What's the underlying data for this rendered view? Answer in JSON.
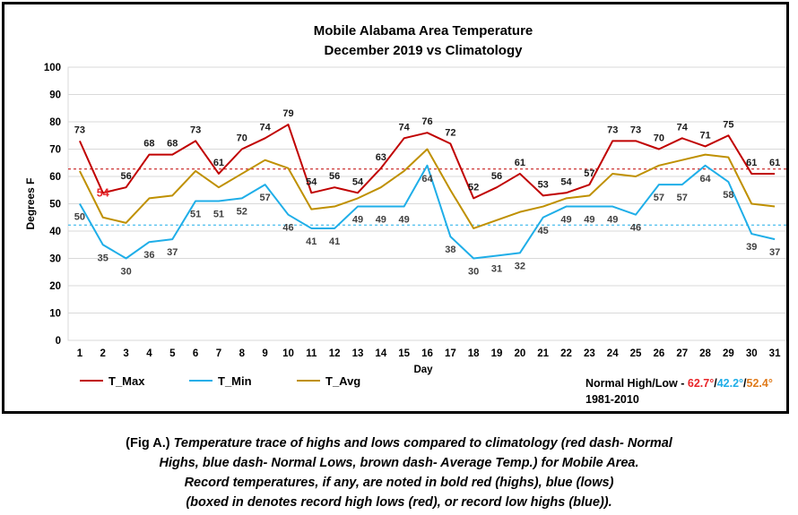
{
  "chart_data": {
    "type": "line",
    "title": "Mobile Alabama Area Temperature",
    "subtitle": "December 2019 vs Climatology",
    "xlabel": "Day",
    "ylabel": "Degrees F",
    "ylim": [
      0,
      100
    ],
    "yticks": [
      0,
      10,
      20,
      30,
      40,
      50,
      60,
      70,
      80,
      90,
      100
    ],
    "grid": true,
    "legend_position": "bottom-left",
    "x": [
      1,
      2,
      3,
      4,
      5,
      6,
      7,
      8,
      9,
      10,
      11,
      12,
      13,
      14,
      15,
      16,
      17,
      18,
      19,
      20,
      21,
      22,
      23,
      24,
      25,
      26,
      27,
      28,
      29,
      30,
      31
    ],
    "series": [
      {
        "name": "T_Max",
        "color": "#C00000",
        "values": [
          73,
          54,
          56,
          68,
          68,
          73,
          61,
          70,
          74,
          79,
          54,
          56,
          54,
          63,
          74,
          76,
          72,
          52,
          56,
          61,
          53,
          54,
          57,
          73,
          73,
          70,
          74,
          71,
          75,
          61,
          61
        ],
        "labels": [
          "73",
          "54",
          "56",
          "68",
          "68",
          "73",
          "61",
          "70",
          "74",
          "79",
          "54",
          "56",
          "54",
          "63",
          "74",
          "76",
          "72",
          "52",
          "56",
          "61",
          "53",
          "54",
          "57",
          "73",
          "73",
          "70",
          "74",
          "71",
          "75",
          "61",
          "61"
        ]
      },
      {
        "name": "T_Min",
        "color": "#1FAEE8",
        "values": [
          50,
          35,
          30,
          36,
          37,
          51,
          51,
          52,
          57,
          46,
          41,
          41,
          49,
          49,
          49,
          64,
          38,
          30,
          31,
          32,
          45,
          49,
          49,
          49,
          46,
          57,
          57,
          64,
          58,
          39,
          37
        ],
        "labels": [
          "50",
          "35",
          "30",
          "36",
          "37",
          "51",
          "51",
          "52",
          "57",
          "46",
          "41",
          "41",
          "49",
          "49",
          "49",
          "64",
          "38",
          "30",
          "31",
          "32",
          "45",
          "49",
          "49",
          "49",
          "46",
          "57",
          "57",
          "64",
          "58",
          "39",
          "37"
        ]
      },
      {
        "name": "T_Avg",
        "color": "#BF9000",
        "values": [
          62,
          45,
          43,
          52,
          53,
          62,
          56,
          61,
          66,
          63,
          48,
          49,
          52,
          56,
          62,
          70,
          55,
          41,
          44,
          47,
          49,
          52,
          53,
          61,
          60,
          64,
          66,
          68,
          67,
          50,
          49
        ]
      }
    ],
    "normal_high": 62.7,
    "normal_low": 42.2,
    "record_labels": [
      {
        "series": "T_Max",
        "day": 2,
        "label": "54"
      }
    ],
    "normals_note": {
      "prefix": "Normal High/Low - ",
      "high": "62.7°",
      "low": "42.2°",
      "avg": "52.4°",
      "sep": "/",
      "period": "1981-2010"
    }
  },
  "colors": {
    "max": "#C00000",
    "min": "#1FAEE8",
    "avg": "#BF9000",
    "normal_high_text": "#E8262A",
    "normal_low_text": "#1FAEE8",
    "normal_avg_text": "#E07B1C",
    "record_high_text": "#E8262A"
  },
  "caption": {
    "lead": "(Fig A.)",
    "line1": " Temperature trace of highs and lows compared to climatology (red dash- Normal",
    "line2": "Highs, blue dash- Normal Lows, brown dash- Average Temp.) for Mobile Area.",
    "line3": "Record temperatures, if any, are noted in bold red (highs), blue (lows)",
    "line4": "(boxed in denotes record high lows (red), or record low highs (blue))."
  }
}
